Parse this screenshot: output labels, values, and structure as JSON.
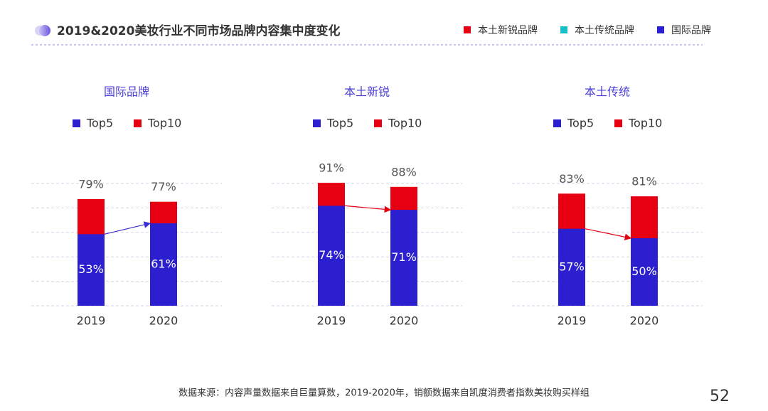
{
  "header": {
    "title": "2019&2020美妆行业不同市场品牌内容集中度变化",
    "legend": [
      {
        "label": "本土新锐品牌",
        "color": "#e60012"
      },
      {
        "label": "本土传统品牌",
        "color": "#17c0c8"
      },
      {
        "label": "国际品牌",
        "color": "#2c1fd0"
      }
    ]
  },
  "chart_data": [
    {
      "type": "bar",
      "title": "国际品牌",
      "categories": [
        "2019",
        "2020"
      ],
      "ylim": [
        0,
        100
      ],
      "series": [
        {
          "name": "Top5",
          "color": "#2c1fd0",
          "values": [
            53,
            61
          ],
          "value_labels": [
            "53%",
            "61%"
          ]
        },
        {
          "name": "Top10",
          "color": "#e60012",
          "values": [
            79,
            77
          ],
          "value_labels": [
            "79%",
            "77%"
          ]
        }
      ]
    },
    {
      "type": "bar",
      "title": "本土新锐",
      "categories": [
        "2019",
        "2020"
      ],
      "ylim": [
        0,
        100
      ],
      "series": [
        {
          "name": "Top5",
          "color": "#2c1fd0",
          "values": [
            74,
            71
          ],
          "value_labels": [
            "74%",
            "71%"
          ]
        },
        {
          "name": "Top10",
          "color": "#e60012",
          "values": [
            91,
            88
          ],
          "value_labels": [
            "91%",
            "88%"
          ]
        }
      ]
    },
    {
      "type": "bar",
      "title": "本土传统",
      "categories": [
        "2019",
        "2020"
      ],
      "ylim": [
        0,
        100
      ],
      "series": [
        {
          "name": "Top5",
          "color": "#2c1fd0",
          "values": [
            57,
            50
          ],
          "value_labels": [
            "57%",
            "50%"
          ]
        },
        {
          "name": "Top10",
          "color": "#e60012",
          "values": [
            83,
            81
          ],
          "value_labels": [
            "83%",
            "81%"
          ]
        }
      ]
    }
  ],
  "footer": {
    "source": "数据来源：内容声量数据来自巨量算数，2019-2020年，销额数据来自凯度消费者指数美妆购买样组",
    "page": "52"
  }
}
